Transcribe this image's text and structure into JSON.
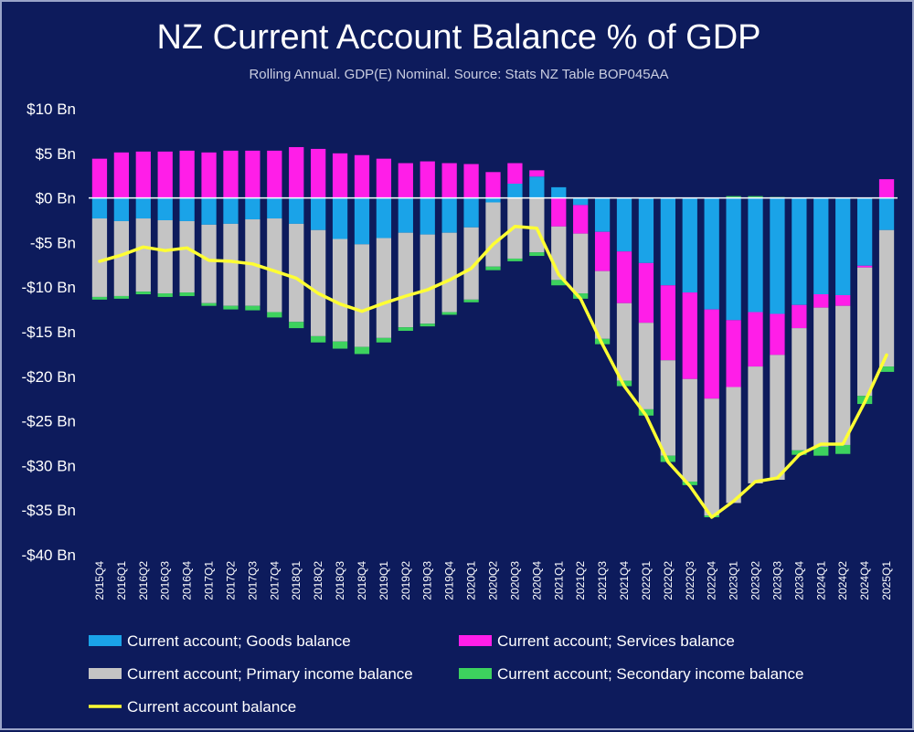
{
  "chart_data": {
    "type": "bar",
    "title": "NZ Current Account Balance % of GDP",
    "subtitle": "Rolling Annual. GDP(E) Nominal. Source: Stats NZ Table BOP045AA",
    "stacked": true,
    "ylim": [
      -40,
      10
    ],
    "y_ticks": [
      10,
      5,
      0,
      -5,
      -10,
      -15,
      -20,
      -25,
      -30,
      -35,
      -40
    ],
    "y_tick_labels": [
      "$10 Bn",
      "$5 Bn",
      "$0 Bn",
      "-$5 Bn",
      "-$10 Bn",
      "-$15 Bn",
      "-$20 Bn",
      "-$25 Bn",
      "-$30 Bn",
      "-$35 Bn",
      "-$40 Bn"
    ],
    "categories": [
      "2015Q4",
      "2016Q1",
      "2016Q2",
      "2016Q3",
      "2016Q4",
      "2017Q1",
      "2017Q2",
      "2017Q3",
      "2017Q4",
      "2018Q1",
      "2018Q2",
      "2018Q3",
      "2018Q4",
      "2019Q1",
      "2019Q2",
      "2019Q3",
      "2019Q4",
      "2020Q1",
      "2020Q2",
      "2020Q3",
      "2020Q4",
      "2021Q1",
      "2021Q2",
      "2021Q3",
      "2021Q4",
      "2022Q1",
      "2022Q2",
      "2022Q3",
      "2022Q4",
      "2023Q1",
      "2023Q2",
      "2023Q3",
      "2023Q4",
      "2024Q1",
      "2024Q2",
      "2024Q4",
      "2025Q1"
    ],
    "series": [
      {
        "name": "Current account; Goods balance",
        "color": "#1aa3e8",
        "kind": "bar",
        "values": [
          -2.3,
          -2.6,
          -2.3,
          -2.5,
          -2.6,
          -3.0,
          -2.9,
          -2.4,
          -2.3,
          -2.9,
          -3.6,
          -4.6,
          -5.2,
          -4.5,
          -3.9,
          -4.1,
          -3.9,
          -3.3,
          -0.5,
          1.6,
          2.4,
          1.2,
          -0.8,
          -3.8,
          -6.0,
          -7.3,
          -9.8,
          -10.6,
          -12.5,
          -13.7,
          -12.8,
          -13.0,
          -12.0,
          -10.8,
          -10.9,
          -7.6,
          -3.6
        ]
      },
      {
        "name": "Current account; Services balance",
        "color": "#ff1ee8",
        "kind": "bar",
        "values": [
          4.4,
          5.1,
          5.2,
          5.2,
          5.3,
          5.1,
          5.3,
          5.3,
          5.3,
          5.7,
          5.5,
          5.0,
          4.8,
          4.4,
          3.9,
          4.1,
          3.9,
          3.8,
          2.9,
          2.3,
          0.7,
          -3.2,
          -3.2,
          -4.4,
          -5.8,
          -6.7,
          -8.4,
          -9.7,
          -10.0,
          -7.5,
          -6.1,
          -4.6,
          -2.6,
          -1.5,
          -1.2,
          -0.2,
          2.1
        ]
      },
      {
        "name": "Current account; Primary income balance",
        "color": "#c4c4c4",
        "kind": "bar",
        "values": [
          -8.8,
          -8.4,
          -8.2,
          -8.2,
          -8.0,
          -8.8,
          -9.2,
          -9.7,
          -10.5,
          -11.0,
          -11.9,
          -11.5,
          -11.5,
          -11.2,
          -10.6,
          -10.0,
          -8.9,
          -8.1,
          -7.2,
          -6.8,
          -6.1,
          -6.0,
          -6.7,
          -7.6,
          -8.7,
          -9.7,
          -10.7,
          -11.5,
          -13.1,
          -13.0,
          -13.1,
          -14.0,
          -13.7,
          -15.6,
          -15.6,
          -14.4,
          -15.3
        ]
      },
      {
        "name": "Current account; Secondary income balance",
        "color": "#3dd25e",
        "kind": "bar",
        "values": [
          -0.3,
          -0.3,
          -0.3,
          -0.4,
          -0.4,
          -0.3,
          -0.4,
          -0.5,
          -0.6,
          -0.7,
          -0.7,
          -0.8,
          -0.8,
          -0.5,
          -0.4,
          -0.3,
          -0.3,
          -0.3,
          -0.4,
          -0.3,
          -0.4,
          -0.6,
          -0.6,
          -0.6,
          -0.6,
          -0.7,
          -0.7,
          -0.4,
          -0.2,
          0.2,
          0.2,
          0.1,
          -0.5,
          -1.0,
          -1.0,
          -0.9,
          -0.6
        ]
      },
      {
        "name": "Current account balance",
        "color": "#ffff33",
        "kind": "line",
        "values": [
          -7.1,
          -6.4,
          -5.5,
          -5.9,
          -5.6,
          -7.0,
          -7.1,
          -7.4,
          -8.2,
          -9.0,
          -10.7,
          -11.9,
          -12.7,
          -11.8,
          -11.0,
          -10.3,
          -9.2,
          -7.9,
          -5.2,
          -3.2,
          -3.4,
          -8.6,
          -11.3,
          -16.4,
          -21.1,
          -24.4,
          -29.6,
          -32.3,
          -35.8,
          -34.0,
          -31.8,
          -31.4,
          -28.8,
          -27.6,
          -27.6,
          -22.9,
          -17.6
        ]
      }
    ],
    "legend_position": "bottom",
    "grid": false
  }
}
